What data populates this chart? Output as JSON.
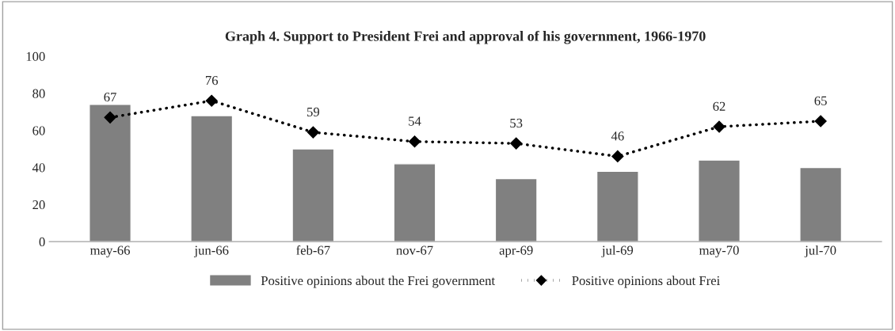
{
  "chart_data": {
    "type": "bar",
    "title": "Graph 4. Support to President Frei and approval of his government, 1966-1970",
    "categories": [
      "may-66",
      "jun-66",
      "feb-67",
      "nov-67",
      "apr-69",
      "jul-69",
      "may-70",
      "jul-70"
    ],
    "series": [
      {
        "name": "Positive opinions about the Frei government",
        "color": "#808080",
        "values": [
          74,
          68,
          50,
          42,
          34,
          38,
          44,
          40
        ]
      },
      {
        "name": "Positive opinions about Frei",
        "type": "line",
        "color": "#000000",
        "marker": "diamond",
        "line_style": "dotted",
        "data_labels": true,
        "values": [
          67,
          76,
          59,
          54,
          53,
          46,
          62,
          65
        ]
      }
    ],
    "ylim": [
      0,
      100
    ],
    "yticks": [
      0,
      20,
      40,
      60,
      80,
      100
    ],
    "grid": false,
    "legend": "bottom"
  }
}
